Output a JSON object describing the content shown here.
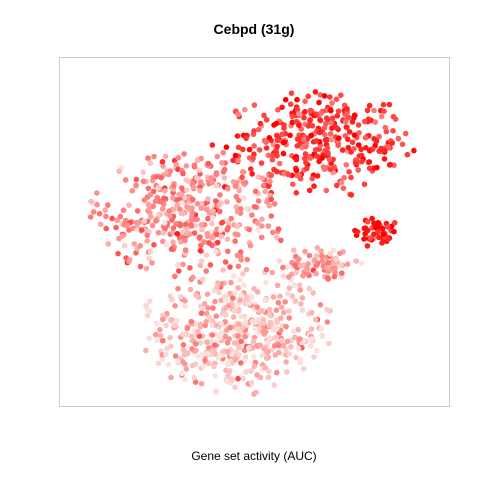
{
  "chart_data": {
    "type": "scatter",
    "title": "Cebpd (31g)",
    "xlabel": "Gene set activity (AUC)",
    "ylabel": "",
    "axes_shown": false,
    "grid": false,
    "legend": "none",
    "color_scale": {
      "low": "#fbe2de",
      "high": "#ff0000",
      "description": "point color encodes gene set activity"
    },
    "clusters": [
      {
        "cx": 0.653,
        "cy": 0.757,
        "rx": 0.24,
        "ry": 0.15,
        "activity": 0.75,
        "count": 360
      },
      {
        "cx": 0.33,
        "cy": 0.55,
        "rx": 0.235,
        "ry": 0.17,
        "activity": 0.38,
        "count": 420
      },
      {
        "cx": 0.453,
        "cy": 0.22,
        "rx": 0.23,
        "ry": 0.17,
        "activity": 0.15,
        "count": 480
      },
      {
        "cx": 0.653,
        "cy": 0.407,
        "rx": 0.11,
        "ry": 0.045,
        "activity": 0.3,
        "count": 80
      },
      {
        "cx": 0.813,
        "cy": 0.5,
        "rx": 0.055,
        "ry": 0.04,
        "activity": 0.85,
        "count": 50
      }
    ]
  },
  "colors": {
    "frame": "#cccccc",
    "low": "#fbe2de",
    "high": "#ff0000"
  }
}
